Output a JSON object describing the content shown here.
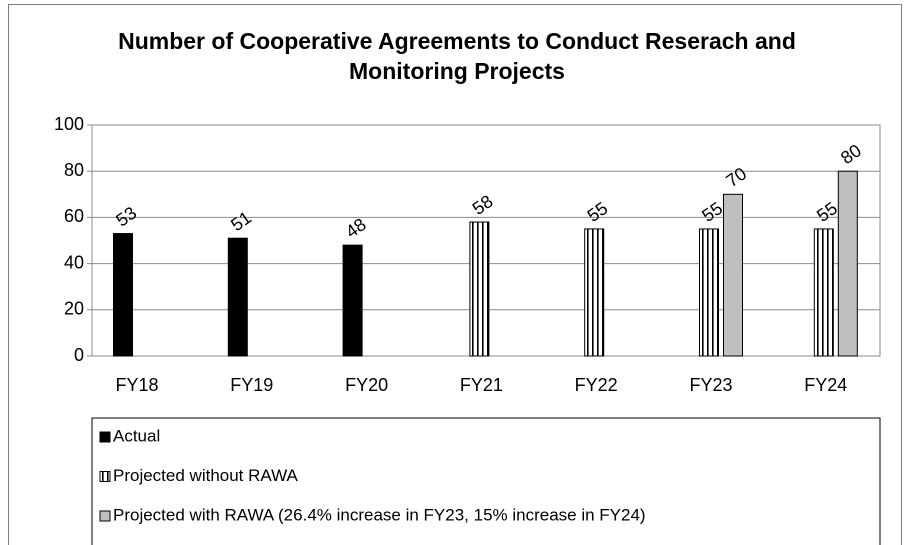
{
  "chart_data": {
    "type": "bar",
    "title": "Number of Cooperative Agreements to Conduct Reserach and Monitoring Projects",
    "categories": [
      "FY18",
      "FY19",
      "FY20",
      "FY21",
      "FY22",
      "FY23",
      "FY24"
    ],
    "series": [
      {
        "name": "Actual",
        "color": "#000000",
        "values": [
          53,
          51,
          48,
          null,
          null,
          null,
          null
        ]
      },
      {
        "name": "Projected without RAWA",
        "color": "#ffffff",
        "hatch": "vertical",
        "values": [
          null,
          null,
          null,
          58,
          55,
          55,
          55
        ]
      },
      {
        "name": "Projected with RAWA (26.4% increase in FY23, 15% increase in FY24)",
        "color": "#bfbfbf",
        "values": [
          null,
          null,
          null,
          null,
          null,
          70,
          80
        ]
      }
    ],
    "ylim": [
      0,
      100
    ],
    "yticks": [
      0,
      20,
      40,
      60,
      80,
      100
    ],
    "grid": true,
    "legend": "bottom"
  }
}
